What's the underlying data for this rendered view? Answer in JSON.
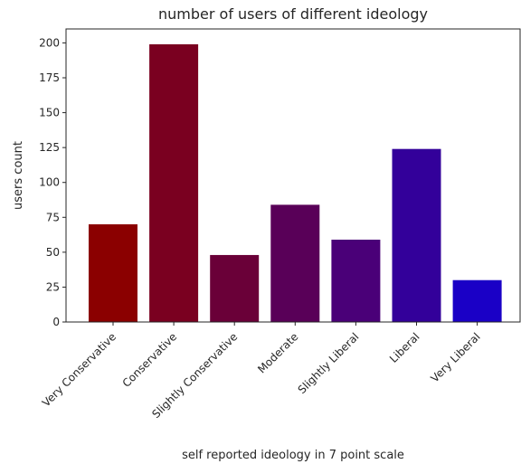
{
  "chart_data": {
    "type": "bar",
    "title": "number of users of different ideology",
    "xlabel": "self reported ideology in 7 point scale",
    "ylabel": "users count",
    "categories": [
      "Very Conservative",
      "Conservative",
      "Slightly Conservative",
      "Moderate",
      "Slightly Liberal",
      "Liberal",
      "Very Liberal"
    ],
    "values": [
      70,
      199,
      48,
      84,
      59,
      124,
      30
    ],
    "colors": [
      "#8b0000",
      "#7a0020",
      "#6a0038",
      "#590058",
      "#4a0078",
      "#33009a",
      "#1a00c6"
    ],
    "ylim": [
      0,
      210
    ],
    "yticks": [
      0,
      25,
      50,
      75,
      100,
      125,
      150,
      175,
      200
    ],
    "grid": false,
    "legend": "none"
  }
}
